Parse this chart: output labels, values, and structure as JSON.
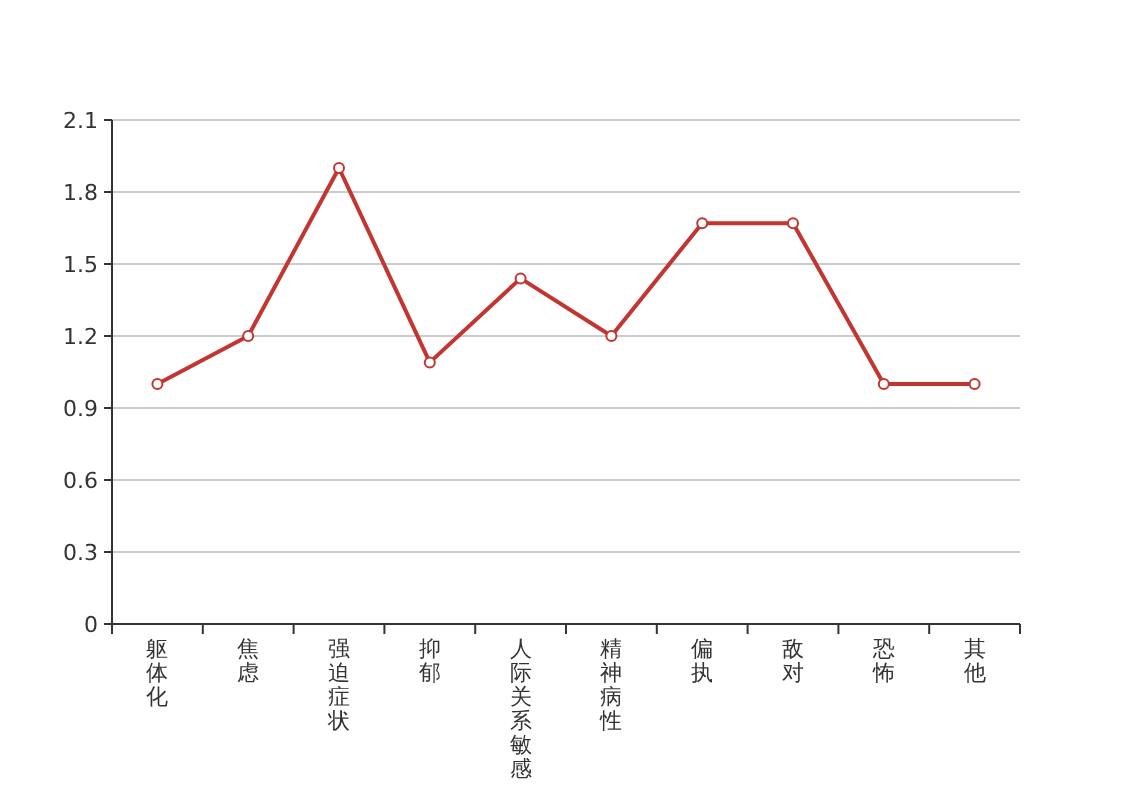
{
  "chart_data": {
    "type": "line",
    "categories": [
      "躯体化",
      "焦虑",
      "强迫症状",
      "抑郁",
      "人际关系敏感",
      "精神病性",
      "偏执",
      "敌对",
      "恐怖",
      "其他"
    ],
    "series": [
      {
        "color": "#c23531",
        "values": [
          1.0,
          1.2,
          1.9,
          1.09,
          1.44,
          1.2,
          1.67,
          1.67,
          1.0,
          1.0
        ]
      }
    ],
    "ylim": [
      0,
      2.1
    ],
    "yticks": [
      0,
      0.3,
      0.6,
      0.9,
      1.2,
      1.5,
      1.8,
      2.1
    ],
    "grid": "y",
    "marker": "circle",
    "line_style": "solid"
  }
}
